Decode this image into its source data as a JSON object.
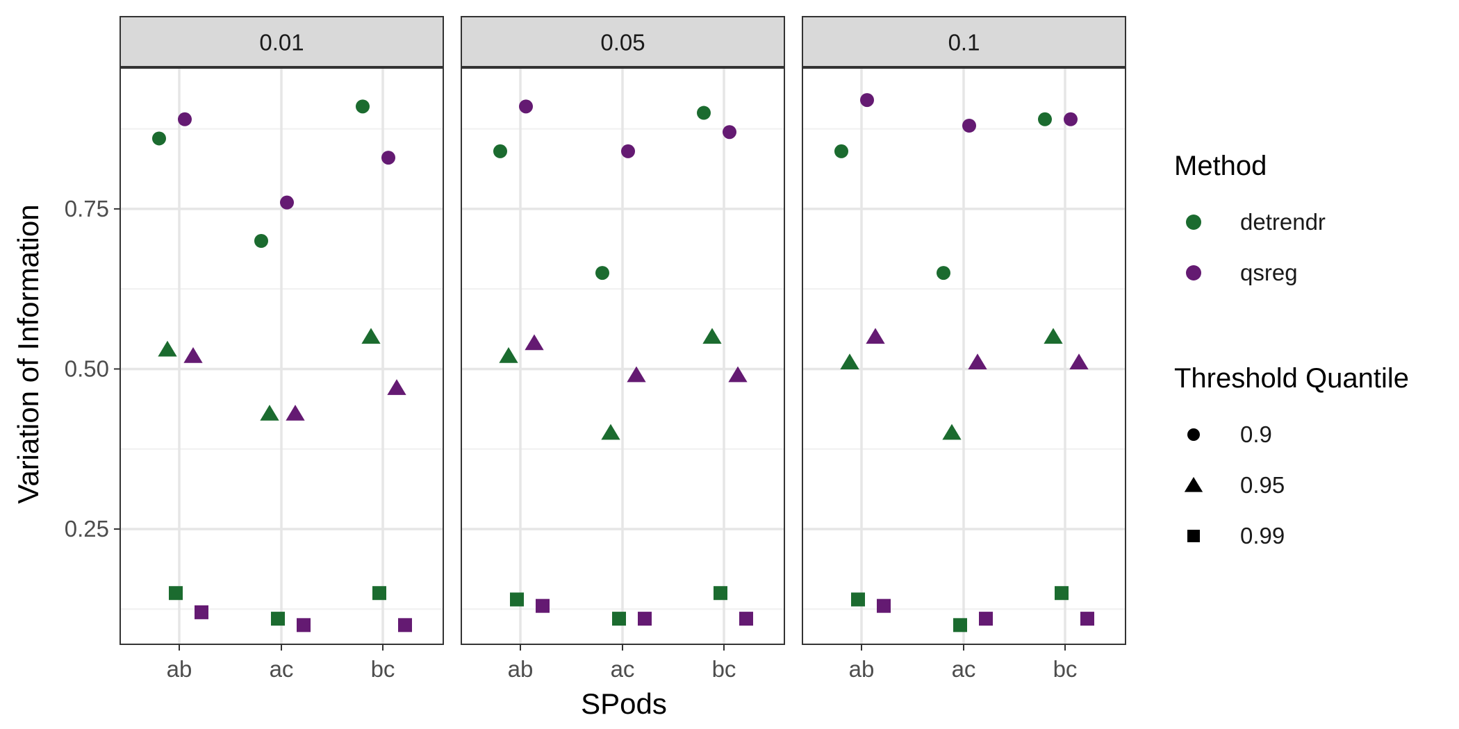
{
  "chart_data": {
    "type": "scatter",
    "xlabel": "SPods",
    "ylabel": "Variation of Information",
    "categories": [
      "ab",
      "ac",
      "bc"
    ],
    "ylim": [
      0.07,
      0.97
    ],
    "yticks": [
      0.25,
      0.5,
      0.75
    ],
    "ytick_labels": [
      "0.25",
      "0.50",
      "0.75"
    ],
    "facets": [
      "0.01",
      "0.05",
      "0.1"
    ],
    "methods": [
      "detrendr",
      "qsreg"
    ],
    "method_colors": [
      "#1b6b2f",
      "#641a72"
    ],
    "quantiles": [
      "0.9",
      "0.95",
      "0.99"
    ],
    "quantile_shapes": [
      "circle",
      "triangle",
      "square"
    ],
    "legend": {
      "position": "right",
      "method_title": "Method",
      "quantile_title": "Threshold Quantile"
    },
    "values": {
      "0.01": {
        "detrendr": {
          "0.9": [
            0.86,
            0.7,
            0.91
          ],
          "0.95": [
            0.53,
            0.43,
            0.55
          ],
          "0.99": [
            0.15,
            0.11,
            0.15
          ]
        },
        "qsreg": {
          "0.9": [
            0.89,
            0.76,
            0.83
          ],
          "0.95": [
            0.52,
            0.43,
            0.47
          ],
          "0.99": [
            0.12,
            0.1,
            0.1
          ]
        }
      },
      "0.05": {
        "detrendr": {
          "0.9": [
            0.84,
            0.65,
            0.9
          ],
          "0.95": [
            0.52,
            0.4,
            0.55
          ],
          "0.99": [
            0.14,
            0.11,
            0.15
          ]
        },
        "qsreg": {
          "0.9": [
            0.91,
            0.84,
            0.87
          ],
          "0.95": [
            0.54,
            0.49,
            0.49
          ],
          "0.99": [
            0.13,
            0.11,
            0.11
          ]
        }
      },
      "0.1": {
        "detrendr": {
          "0.9": [
            0.84,
            0.65,
            0.89
          ],
          "0.95": [
            0.51,
            0.4,
            0.55
          ],
          "0.99": [
            0.14,
            0.1,
            0.15
          ]
        },
        "qsreg": {
          "0.9": [
            0.92,
            0.88,
            0.89
          ],
          "0.95": [
            0.55,
            0.51,
            0.51
          ],
          "0.99": [
            0.13,
            0.11,
            0.11
          ]
        }
      }
    }
  }
}
